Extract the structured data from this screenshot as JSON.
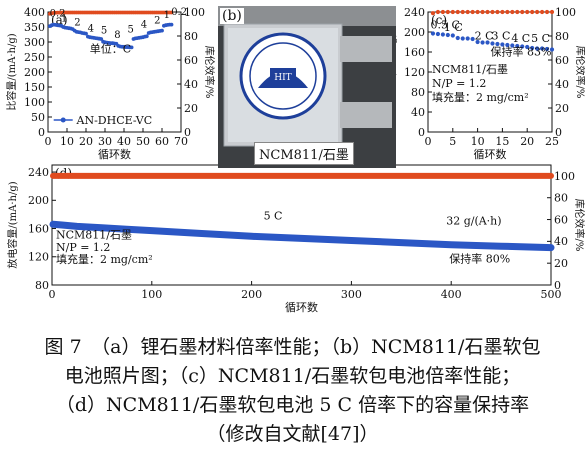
{
  "chart_data": [
    {
      "panel": "(a)",
      "type": "scatter",
      "series": [
        {
          "name": "AN-DHCE-VC",
          "axis": "left",
          "color": "#2b57c5",
          "x": [
            1,
            2,
            3,
            4,
            5,
            6,
            7,
            8,
            9,
            10,
            11,
            12,
            13,
            14,
            15,
            16,
            17,
            18,
            19,
            20,
            21,
            22,
            23,
            24,
            25,
            26,
            27,
            28,
            29,
            30,
            31,
            32,
            33,
            34,
            35,
            36,
            37,
            38,
            39,
            40,
            41,
            42,
            43,
            44,
            45,
            46,
            47,
            48,
            49,
            50,
            51,
            52,
            53,
            54,
            55,
            56,
            57,
            58,
            59,
            60,
            61,
            62,
            63,
            64,
            65
          ],
          "y": [
            353,
            356,
            358,
            357,
            356,
            355,
            354,
            350,
            348,
            347,
            346,
            345,
            343,
            338,
            334,
            333,
            332,
            330,
            329,
            328,
            318,
            316,
            315,
            314,
            313,
            312,
            311,
            310,
            301,
            299,
            298,
            297,
            296,
            296,
            295,
            294,
            287,
            285,
            284,
            284,
            283,
            283,
            282,
            282,
            310,
            312,
            313,
            314,
            315,
            316,
            318,
            319,
            330,
            332,
            333,
            334,
            335,
            336,
            337,
            338,
            354,
            356,
            357,
            358,
            358
          ]
        },
        {
          "name": "coulombic efficiency",
          "axis": "right",
          "color": "#e04b1f",
          "x": [
            1,
            2,
            3,
            4,
            5,
            6,
            7,
            8,
            9,
            10,
            11,
            12,
            13,
            14,
            15,
            16,
            17,
            18,
            19,
            20,
            21,
            22,
            23,
            24,
            25,
            26,
            27,
            28,
            29,
            30,
            31,
            32,
            33,
            34,
            35,
            36,
            37,
            38,
            39,
            40,
            41,
            42,
            43,
            44,
            45,
            46,
            47,
            48,
            49,
            50,
            51,
            52,
            53,
            54,
            55,
            56,
            57,
            58,
            59,
            60,
            61,
            62,
            63,
            64,
            65
          ],
          "y": [
            98.5,
            99,
            99.3,
            99.4,
            99.5,
            99.5,
            99.5,
            99.6,
            99.6,
            99.6,
            99.6,
            99.6,
            99.6,
            99.6,
            99.6,
            99.6,
            99.6,
            99.6,
            99.6,
            99.6,
            99.6,
            99.6,
            99.6,
            99.6,
            99.6,
            99.6,
            99.6,
            99.6,
            99.6,
            99.6,
            99.6,
            99.6,
            99.6,
            99.6,
            99.6,
            99.6,
            99.6,
            99.6,
            99.6,
            99.6,
            99.6,
            99.6,
            99.6,
            99.6,
            99.6,
            99.6,
            99.6,
            99.6,
            99.6,
            99.6,
            99.6,
            99.6,
            99.6,
            99.6,
            99.6,
            99.6,
            99.6,
            99.6,
            99.6,
            99.6,
            99.6,
            99.6,
            99.6,
            99.6,
            99.6
          ]
        }
      ],
      "rate_labels": [
        "0.2",
        "1",
        "2",
        "4",
        "5",
        "8",
        "5",
        "4",
        "2",
        "1",
        "0.2"
      ],
      "unit_label": "单位：C",
      "legend": "AN-DHCE-VC",
      "xlabel": "循环数",
      "ylabel": "比容量/(mA·h/g)",
      "y2label": "库伦效率/%",
      "xlim": [
        0,
        70
      ],
      "ylim": [
        0,
        400
      ],
      "y2lim": [
        0,
        100
      ],
      "xticks": [
        0,
        10,
        20,
        30,
        40,
        50,
        60,
        70
      ],
      "yticks": [
        0,
        50,
        100,
        150,
        200,
        250,
        300,
        350,
        400
      ],
      "y2ticks": [
        0,
        20,
        40,
        60,
        80,
        100
      ]
    },
    {
      "panel": "(c)",
      "type": "scatter",
      "series": [
        {
          "name": "capacity",
          "axis": "left",
          "color": "#2b57c5",
          "x": [
            1,
            2,
            3,
            4,
            5,
            6,
            7,
            8,
            9,
            10,
            11,
            12,
            13,
            14,
            15,
            16,
            17,
            18,
            19,
            20,
            21,
            22,
            23,
            24,
            25
          ],
          "y": [
            197,
            196,
            195,
            194,
            193,
            188,
            187,
            187,
            186,
            180,
            179,
            179,
            177,
            176,
            175,
            174,
            173,
            172,
            171,
            170,
            168,
            167,
            167,
            166,
            165
          ]
        },
        {
          "name": "coulombic efficiency",
          "axis": "right",
          "color": "#e04b1f",
          "x": [
            1,
            2,
            3,
            4,
            5,
            6,
            7,
            8,
            9,
            10,
            11,
            12,
            13,
            14,
            15,
            16,
            17,
            18,
            19,
            20,
            21,
            22,
            23,
            24,
            25
          ],
          "y": [
            99,
            100,
            100,
            100,
            100,
            100,
            100,
            100,
            100,
            100,
            100,
            100,
            100,
            100,
            100,
            100,
            100,
            100,
            100,
            100,
            100,
            100,
            100,
            100,
            100
          ]
        }
      ],
      "rate_labels": [
        "0.5 C",
        "1 C",
        "2 C",
        "3 C",
        "4 C",
        "5 C"
      ],
      "annotations": [
        "NCM811/石墨",
        "N/P = 1.2",
        "填充量：2 mg/cm²",
        "保持率 83%"
      ],
      "xlabel": "循环数",
      "ylabel": "比容量/(mA·h/g)",
      "y2label": "库伦效率/%",
      "xlim": [
        0,
        25
      ],
      "ylim": [
        0,
        240
      ],
      "y2lim": [
        0,
        100
      ],
      "xticks": [
        0,
        5,
        10,
        15,
        20,
        25
      ],
      "yticks": [
        0,
        40,
        80,
        120,
        160,
        200,
        240
      ],
      "y2ticks": [
        0,
        20,
        40,
        60,
        80,
        100
      ]
    },
    {
      "panel": "(d)",
      "type": "line",
      "series": [
        {
          "name": "capacity",
          "axis": "left",
          "color": "#2b57c5",
          "x": [
            1,
            10,
            25,
            50,
            75,
            100,
            150,
            200,
            250,
            300,
            350,
            400,
            450,
            500
          ],
          "y": [
            166,
            165,
            163,
            161,
            159,
            157,
            153,
            149,
            146,
            143,
            140,
            137,
            135,
            133
          ]
        },
        {
          "name": "coulombic efficiency",
          "axis": "right",
          "color": "#e04b1f",
          "x": [
            1,
            500
          ],
          "y": [
            100,
            100
          ]
        }
      ],
      "annotations": [
        "NCM811/石墨",
        "N/P = 1.2",
        "填充量：2 mg/cm²",
        "5 C",
        "32 g/(A·h)",
        "保持率 80%"
      ],
      "xlabel": "循环数",
      "ylabel": "放电容量/(mA·h/g)",
      "y2label": "库伦效率/%",
      "xlim": [
        0,
        500
      ],
      "ylim": [
        80,
        250
      ],
      "y2lim": [
        0,
        110
      ],
      "xticks": [
        0,
        100,
        200,
        300,
        400,
        500
      ],
      "yticks": [
        80,
        120,
        160,
        200,
        240
      ],
      "y2ticks": [
        0,
        20,
        40,
        60,
        80,
        100
      ]
    }
  ],
  "photo": {
    "panel": "(b)",
    "label": "NCM811/石墨"
  },
  "caption": {
    "line1": "图 7　（a）锂石墨材料倍率性能；（b）NCM811/石墨软包",
    "line2": "电池照片图；（c）NCM811/石墨软包电池倍率性能；",
    "line3": "（d）NCM811/石墨软包电池 5 C 倍率下的容量保持率",
    "line4": "（修改自文献[47]）"
  }
}
